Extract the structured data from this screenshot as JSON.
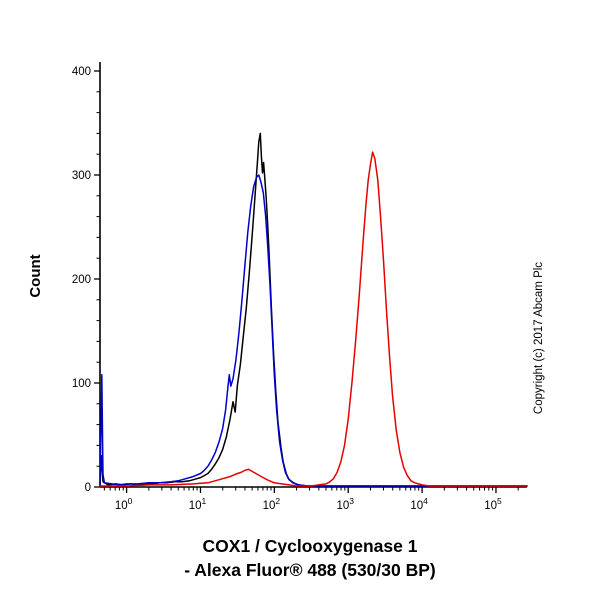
{
  "figure": {
    "y_axis_label": "Count",
    "x_axis_label_line1": "COX1 / Cyclooxygenase 1",
    "x_axis_label_line2": "- Alexa Fluor® 488 (530/30 BP)",
    "copyright": "Copyright (c) 2017 Abcam Plc"
  },
  "chart_data": {
    "type": "line",
    "subtype": "flow-cytometry-histogram",
    "title": "",
    "xlabel": "COX1 / Cyclooxygenase 1 - Alexa Fluor® 488 (530/30 BP)",
    "ylabel": "Count",
    "x_scale": "log10",
    "xlim_log": [
      -0.36,
      5.42
    ],
    "ylim": [
      0,
      400
    ],
    "x_tick_exponents": [
      0,
      1,
      2,
      3,
      4,
      5
    ],
    "x_tick_base": "10",
    "y_ticks": [
      0,
      100,
      200,
      300,
      400
    ],
    "y_minor_step": 20,
    "grid": false,
    "legend": "none",
    "series": [
      {
        "name": "black-curve",
        "color": "#000000",
        "stroke_width": 1.5,
        "peak": {
          "x_log": 1.81,
          "count": 340
        },
        "points": [
          [
            -0.36,
            2
          ],
          [
            -0.34,
            30
          ],
          [
            -0.32,
            5
          ],
          [
            -0.25,
            2
          ],
          [
            -0.15,
            3
          ],
          [
            -0.05,
            2
          ],
          [
            0.05,
            3
          ],
          [
            0.15,
            2
          ],
          [
            0.25,
            3
          ],
          [
            0.35,
            3
          ],
          [
            0.45,
            4
          ],
          [
            0.55,
            4
          ],
          [
            0.65,
            5
          ],
          [
            0.75,
            5
          ],
          [
            0.85,
            6
          ],
          [
            0.95,
            8
          ],
          [
            1.0,
            9
          ],
          [
            1.05,
            11
          ],
          [
            1.1,
            13
          ],
          [
            1.15,
            17
          ],
          [
            1.2,
            22
          ],
          [
            1.25,
            28
          ],
          [
            1.3,
            36
          ],
          [
            1.35,
            48
          ],
          [
            1.4,
            65
          ],
          [
            1.44,
            82
          ],
          [
            1.47,
            72
          ],
          [
            1.5,
            98
          ],
          [
            1.54,
            118
          ],
          [
            1.58,
            145
          ],
          [
            1.62,
            172
          ],
          [
            1.66,
            205
          ],
          [
            1.69,
            232
          ],
          [
            1.72,
            262
          ],
          [
            1.75,
            292
          ],
          [
            1.77,
            312
          ],
          [
            1.79,
            332
          ],
          [
            1.81,
            340
          ],
          [
            1.825,
            318
          ],
          [
            1.84,
            302
          ],
          [
            1.855,
            312
          ],
          [
            1.87,
            298
          ],
          [
            1.89,
            278
          ],
          [
            1.91,
            252
          ],
          [
            1.93,
            222
          ],
          [
            1.96,
            172
          ],
          [
            1.99,
            128
          ],
          [
            2.02,
            92
          ],
          [
            2.05,
            62
          ],
          [
            2.09,
            38
          ],
          [
            2.12,
            24
          ],
          [
            2.16,
            13
          ],
          [
            2.2,
            7
          ],
          [
            2.26,
            4
          ],
          [
            2.33,
            2
          ],
          [
            2.45,
            1
          ],
          [
            2.6,
            1
          ],
          [
            2.9,
            1
          ],
          [
            3.3,
            1
          ],
          [
            3.8,
            1
          ],
          [
            4.3,
            1
          ],
          [
            4.9,
            1
          ],
          [
            5.42,
            1
          ]
        ]
      },
      {
        "name": "blue-curve",
        "color": "#0000cd",
        "stroke_width": 1.5,
        "peak": {
          "x_log": 1.79,
          "count": 300
        },
        "points": [
          [
            -0.36,
            2
          ],
          [
            -0.345,
            60
          ],
          [
            -0.335,
            108
          ],
          [
            -0.32,
            12
          ],
          [
            -0.3,
            4
          ],
          [
            -0.2,
            3
          ],
          [
            -0.1,
            2
          ],
          [
            0.0,
            3
          ],
          [
            0.15,
            3
          ],
          [
            0.3,
            4
          ],
          [
            0.45,
            4
          ],
          [
            0.6,
            5
          ],
          [
            0.7,
            6
          ],
          [
            0.8,
            8
          ],
          [
            0.9,
            10
          ],
          [
            1.0,
            13
          ],
          [
            1.05,
            16
          ],
          [
            1.1,
            20
          ],
          [
            1.15,
            26
          ],
          [
            1.2,
            33
          ],
          [
            1.25,
            43
          ],
          [
            1.3,
            56
          ],
          [
            1.34,
            74
          ],
          [
            1.37,
            95
          ],
          [
            1.39,
            108
          ],
          [
            1.41,
            97
          ],
          [
            1.44,
            104
          ],
          [
            1.48,
            122
          ],
          [
            1.52,
            148
          ],
          [
            1.56,
            178
          ],
          [
            1.6,
            212
          ],
          [
            1.64,
            245
          ],
          [
            1.68,
            270
          ],
          [
            1.72,
            289
          ],
          [
            1.76,
            298
          ],
          [
            1.79,
            300
          ],
          [
            1.82,
            293
          ],
          [
            1.85,
            283
          ],
          [
            1.88,
            262
          ],
          [
            1.91,
            232
          ],
          [
            1.94,
            196
          ],
          [
            1.97,
            152
          ],
          [
            2.0,
            108
          ],
          [
            2.03,
            74
          ],
          [
            2.07,
            44
          ],
          [
            2.11,
            26
          ],
          [
            2.15,
            14
          ],
          [
            2.19,
            8
          ],
          [
            2.25,
            4
          ],
          [
            2.32,
            2
          ],
          [
            2.45,
            1
          ],
          [
            2.7,
            1
          ],
          [
            3.1,
            1
          ],
          [
            3.6,
            1
          ],
          [
            4.2,
            1
          ],
          [
            4.9,
            1
          ],
          [
            5.42,
            1
          ]
        ]
      },
      {
        "name": "red-curve",
        "color": "#e60000",
        "stroke_width": 1.5,
        "peak": {
          "x_log": 3.33,
          "count": 322
        },
        "points": [
          [
            -0.36,
            1
          ],
          [
            -0.2,
            1
          ],
          [
            0.0,
            1
          ],
          [
            0.3,
            2
          ],
          [
            0.6,
            2
          ],
          [
            0.9,
            3
          ],
          [
            1.1,
            4
          ],
          [
            1.2,
            6
          ],
          [
            1.3,
            8
          ],
          [
            1.4,
            10
          ],
          [
            1.5,
            13
          ],
          [
            1.55,
            14
          ],
          [
            1.6,
            16
          ],
          [
            1.65,
            17
          ],
          [
            1.7,
            15
          ],
          [
            1.75,
            13
          ],
          [
            1.8,
            11
          ],
          [
            1.85,
            9
          ],
          [
            1.9,
            7
          ],
          [
            2.0,
            4
          ],
          [
            2.1,
            3
          ],
          [
            2.2,
            2
          ],
          [
            2.3,
            1
          ],
          [
            2.5,
            1
          ],
          [
            2.6,
            2
          ],
          [
            2.7,
            3
          ],
          [
            2.75,
            5
          ],
          [
            2.8,
            8
          ],
          [
            2.85,
            14
          ],
          [
            2.9,
            24
          ],
          [
            2.95,
            40
          ],
          [
            3.0,
            65
          ],
          [
            3.05,
            100
          ],
          [
            3.1,
            140
          ],
          [
            3.15,
            185
          ],
          [
            3.2,
            235
          ],
          [
            3.24,
            272
          ],
          [
            3.27,
            295
          ],
          [
            3.3,
            310
          ],
          [
            3.33,
            322
          ],
          [
            3.36,
            316
          ],
          [
            3.4,
            295
          ],
          [
            3.44,
            258
          ],
          [
            3.48,
            215
          ],
          [
            3.52,
            168
          ],
          [
            3.56,
            125
          ],
          [
            3.6,
            88
          ],
          [
            3.65,
            55
          ],
          [
            3.7,
            33
          ],
          [
            3.75,
            19
          ],
          [
            3.8,
            11
          ],
          [
            3.85,
            6
          ],
          [
            3.9,
            4
          ],
          [
            4.0,
            2
          ],
          [
            4.1,
            1
          ],
          [
            4.3,
            1
          ],
          [
            4.6,
            1
          ],
          [
            5.0,
            1
          ],
          [
            5.42,
            1
          ]
        ]
      }
    ]
  }
}
